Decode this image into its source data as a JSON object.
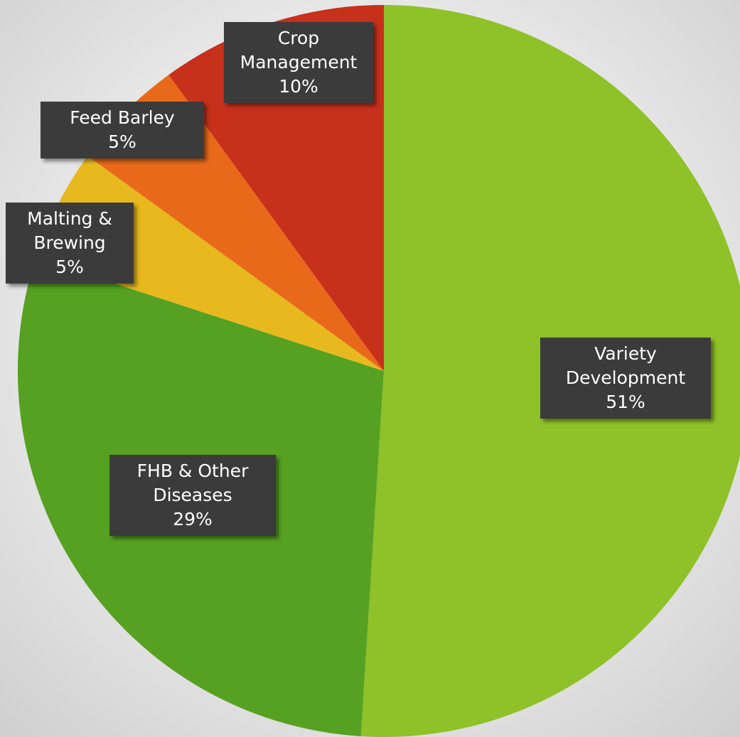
{
  "chart_data": {
    "type": "pie",
    "categories": [
      "Variety Development",
      "FHB & Other Diseases",
      "Malting & Brewing",
      "Feed Barley",
      "Crop Management"
    ],
    "values": [
      51,
      29,
      5,
      5,
      10
    ],
    "value_labels": [
      "51%",
      "29%",
      "5%",
      "5%",
      "10%"
    ],
    "colors": [
      "#8fc128",
      "#56a122",
      "#e7b91f",
      "#e9691a",
      "#c7301b"
    ]
  }
}
